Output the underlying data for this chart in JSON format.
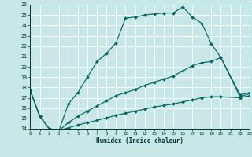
{
  "xlabel": "Humidex (Indice chaleur)",
  "bg_color": "#c8e8e8",
  "grid_color": "#ffffff",
  "line_color": "#006666",
  "xmin": 0,
  "xmax": 23,
  "ymin": 14,
  "ymax": 26,
  "curve1_x": [
    0,
    1,
    2,
    3,
    4,
    5,
    6,
    7,
    8,
    9,
    10,
    11,
    12,
    13,
    14,
    15,
    16,
    17,
    18,
    19,
    20,
    22,
    23
  ],
  "curve1_y": [
    17.7,
    15.2,
    14.0,
    13.8,
    16.4,
    17.5,
    19.0,
    20.5,
    21.3,
    22.3,
    24.7,
    24.8,
    25.0,
    25.1,
    25.2,
    25.2,
    25.8,
    24.8,
    24.2,
    22.2,
    20.9,
    17.3,
    17.5
  ],
  "curve2_x": [
    0,
    1,
    2,
    3,
    4,
    5,
    6,
    7,
    8,
    9,
    10,
    11,
    12,
    13,
    14,
    15,
    16,
    17,
    18,
    19,
    20,
    22,
    23
  ],
  "curve2_y": [
    17.7,
    15.2,
    14.0,
    13.8,
    14.6,
    15.2,
    15.7,
    16.2,
    16.7,
    17.2,
    17.5,
    17.8,
    18.2,
    18.5,
    18.8,
    19.1,
    19.6,
    20.1,
    20.4,
    20.5,
    20.9,
    17.1,
    17.4
  ],
  "curve3_x": [
    0,
    1,
    2,
    3,
    4,
    5,
    6,
    7,
    8,
    9,
    10,
    11,
    12,
    13,
    14,
    15,
    16,
    17,
    18,
    19,
    20,
    22,
    23
  ],
  "curve3_y": [
    17.7,
    15.2,
    14.0,
    13.8,
    14.1,
    14.35,
    14.6,
    14.8,
    15.05,
    15.3,
    15.5,
    15.7,
    15.9,
    16.1,
    16.25,
    16.4,
    16.6,
    16.8,
    17.0,
    17.1,
    17.1,
    17.0,
    17.2
  ]
}
